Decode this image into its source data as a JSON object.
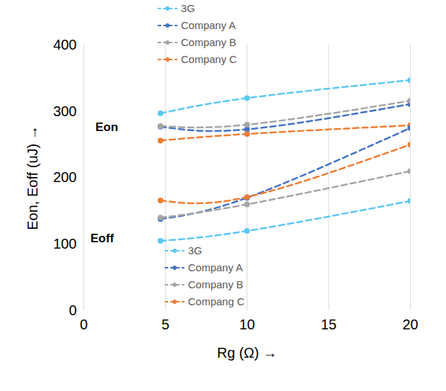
{
  "chart_data": {
    "type": "line",
    "x_label": "Rg (Ω)",
    "y_label": "Eon, Eoff (uJ)",
    "x": [
      4.7,
      10,
      20
    ],
    "xlim": [
      0,
      20
    ],
    "xticks": [
      0,
      5,
      10,
      15,
      20
    ],
    "ylim": [
      0,
      400
    ],
    "yticks": [
      0,
      100,
      200,
      300,
      400
    ],
    "grid": "x",
    "marker": "circle",
    "line_style": "dashed",
    "groups": [
      {
        "label": "Eon",
        "legend": "upper center",
        "series": [
          {
            "name": "3G",
            "color": "#5bc8f5",
            "values": [
              297,
              320,
              347
            ]
          },
          {
            "name": "Company A",
            "color": "#4472c4",
            "values": [
              277,
              273,
              311
            ]
          },
          {
            "name": "Company B",
            "color": "#a5a5a5",
            "values": [
              278,
              280,
              316
            ]
          },
          {
            "name": "Company C",
            "color": "#ed7d31",
            "values": [
              256,
              266,
              279
            ]
          }
        ]
      },
      {
        "label": "Eoff",
        "legend": "lower center",
        "series": [
          {
            "name": "3G",
            "color": "#5bc8f5",
            "values": [
              105,
              120,
              165
            ]
          },
          {
            "name": "Company A",
            "color": "#4472c4",
            "values": [
              138,
              170,
              275
            ]
          },
          {
            "name": "Company B",
            "color": "#a5a5a5",
            "values": [
              140,
              160,
              210
            ]
          },
          {
            "name": "Compang C",
            "color": "#ed7d31",
            "values": [
              166,
              171,
              250
            ]
          }
        ]
      }
    ]
  }
}
